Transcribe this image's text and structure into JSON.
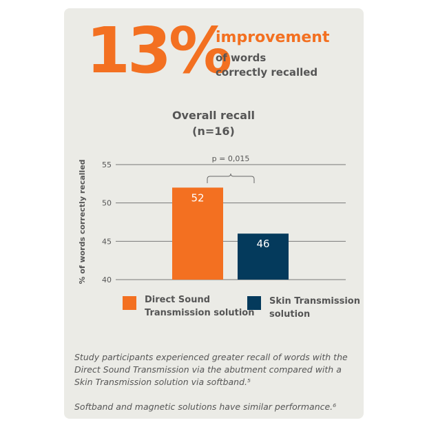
{
  "headline": {
    "value": "13%",
    "word": "improvement",
    "line1": "of words",
    "line2": "correctly recalled"
  },
  "chart_data": {
    "type": "bar",
    "title": "Overall recall",
    "subtitle": "(n=16)",
    "ylabel": "% of words correctly recalled",
    "ylim": [
      40,
      55
    ],
    "yticks": [
      40,
      45,
      50,
      55
    ],
    "grid": true,
    "categories": [
      "Direct Sound Transmission solution",
      "Skin Transmission solution"
    ],
    "values": [
      52,
      46
    ],
    "colors": [
      "#f37021",
      "#043a5c"
    ],
    "annotation": "p = 0,015",
    "legend": {
      "placement": "bottom",
      "items": [
        {
          "line1": "Direct Sound",
          "line2": "Transmission solution"
        },
        {
          "line1": "Skin Transmission",
          "line2": "solution"
        }
      ]
    }
  },
  "footnote": {
    "p1": "Study participants experienced greater recall of words with the Direct Sound Transmission via the abutment compared with a Skin Transmission solution via softband.⁵",
    "p2": "Softband and magnetic solutions have similar performance.⁶"
  }
}
